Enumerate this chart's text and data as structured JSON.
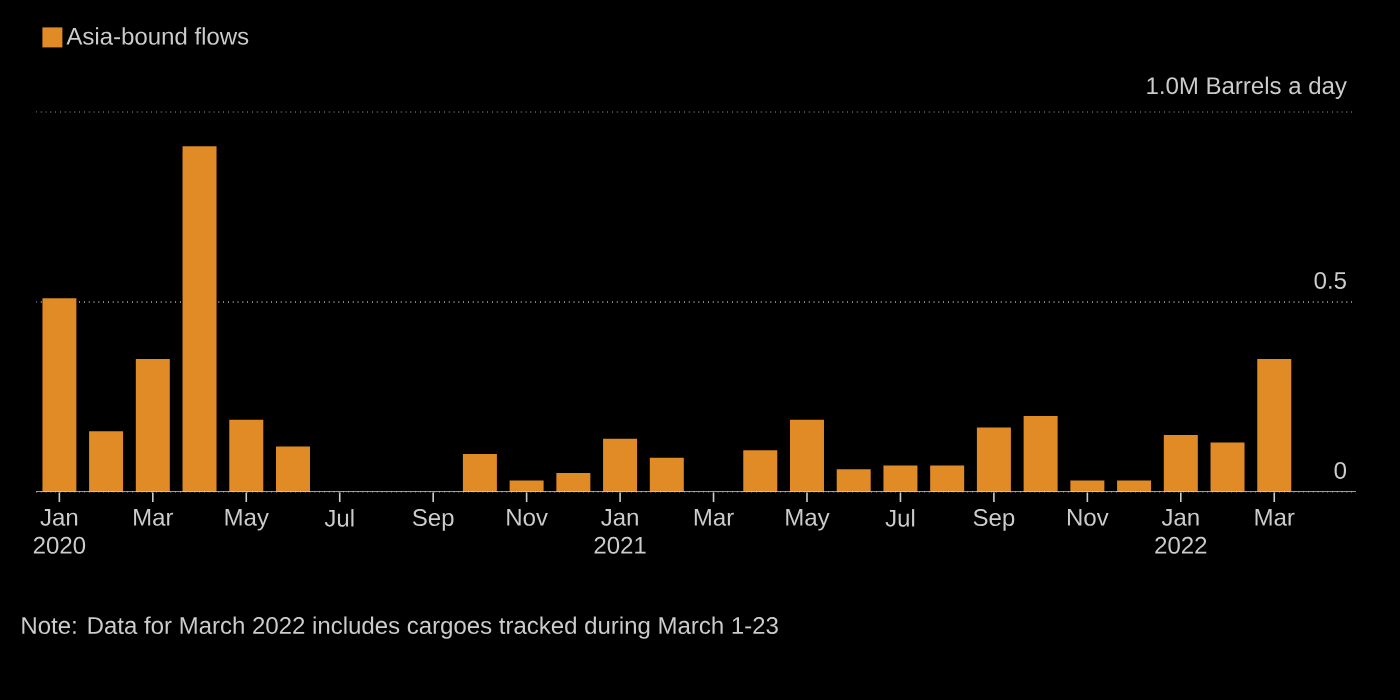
{
  "chart_data": {
    "type": "bar",
    "categories": [
      "Jan 2020",
      null,
      "Mar",
      null,
      "May",
      null,
      "Jul",
      null,
      "Sep",
      null,
      "Nov",
      null,
      "Jan 2021",
      null,
      "Mar",
      null,
      "May",
      null,
      "Jul",
      null,
      "Sep",
      null,
      "Nov",
      null,
      "Jan 2022",
      null,
      "Mar"
    ],
    "series": [
      {
        "name": "Asia-bound flows",
        "color": "#e08b26",
        "values": [
          0.51,
          0.16,
          0.35,
          0.91,
          0.19,
          0.12,
          0,
          0,
          0,
          0.1,
          0.03,
          0.05,
          0.14,
          0.09,
          0,
          0.11,
          0.19,
          0.06,
          0.07,
          0.07,
          0.17,
          0.2,
          0.03,
          0.03,
          0.15,
          0.13,
          0.35
        ]
      }
    ],
    "ylim": [
      0,
      1.0
    ],
    "yticks": [
      0,
      0.5,
      {
        "value": 1.0,
        "label": "1.0M Barrels a day"
      }
    ],
    "grid": "y",
    "legend": "top left",
    "annotations": [
      "Note: Data for March 2022 includes cargoes tracked during March 1-23"
    ]
  }
}
